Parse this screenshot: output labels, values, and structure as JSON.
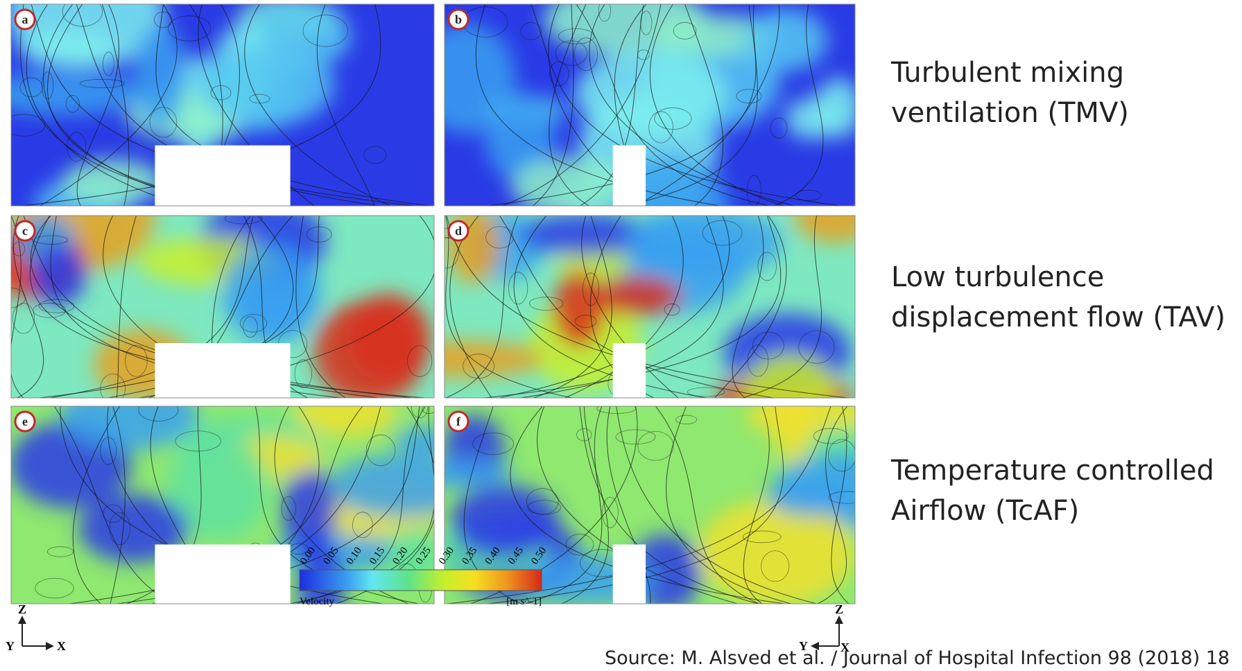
{
  "panels": [
    {
      "letter": "a"
    },
    {
      "letter": "b"
    },
    {
      "letter": "c"
    },
    {
      "letter": "d"
    },
    {
      "letter": "e"
    },
    {
      "letter": "f"
    }
  ],
  "row_labels": [
    {
      "lines": [
        "Turbulent mixing",
        "ventilation (TMV)"
      ]
    },
    {
      "lines": [
        "Low turbulence",
        "displacement flow (TAV)"
      ]
    },
    {
      "lines": [
        "Temperature controlled",
        "Airflow (TcAF)"
      ]
    }
  ],
  "colorbar": {
    "ticks": [
      "0.00",
      "0.05",
      "0.10",
      "0.15",
      "0.20",
      "0.25",
      "0.30",
      "0.35",
      "0.40",
      "0.45",
      "0.50"
    ],
    "title": "Velocity",
    "unit": "[m s^-1]"
  },
  "axes_left": {
    "z": "Z",
    "y": "Y",
    "x": "X"
  },
  "axes_right": {
    "z": "Z",
    "y": "Y",
    "x": "X"
  },
  "source": "Source: M. Alsved et al. / Journal of Hospital Infection 98 (2018) 18"
}
